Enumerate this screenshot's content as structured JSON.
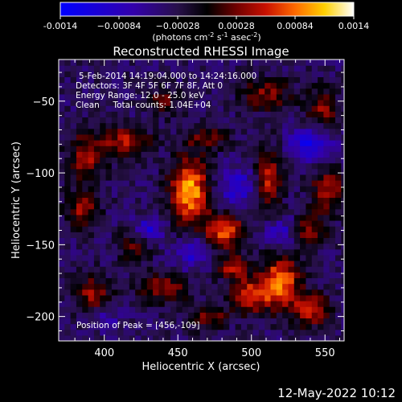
{
  "chart_data": {
    "type": "heatmap",
    "title": "Reconstructed RHESSI Image",
    "xlabel": "Heliocentric X (arcsec)",
    "ylabel": "Heliocentric Y (arcsec)",
    "xlim": [
      369,
      563
    ],
    "ylim": [
      -217,
      -21
    ],
    "x_ticks": [
      400,
      450,
      500,
      550
    ],
    "y_ticks": [
      -50,
      -100,
      -150,
      -200
    ],
    "colorbar": {
      "label_parts": [
        "(photons cm",
        "-2",
        " s",
        "-1",
        " asec",
        "-2",
        ")"
      ],
      "range": [
        -0.0014,
        0.0014
      ],
      "ticks": [
        -0.0014,
        -0.00084,
        -0.00028,
        0.00028,
        0.00084,
        0.0014
      ],
      "tick_labels": [
        "-0.0014",
        "−0.00084",
        "−0.00028",
        "0.00028",
        "0.00084",
        "0.0014"
      ]
    },
    "info_lines": [
      "5-Feb-2014 14:19:04.000 to 14:24:16.000",
      "Detectors: 3F 4F 5F 6F 7F 8F, Att 0",
      "Energy Range: 12.0 - 25.0 keV",
      "Clean     Total counts: 1.04E+04"
    ],
    "peak_label": "Position of Peak = [456,-109]",
    "peak": {
      "x": 456,
      "y": -109,
      "value": 0.0014
    },
    "blobs": [
      {
        "x": 458,
        "y": -112,
        "sx": 9,
        "sy": 16,
        "a": 0.0014
      },
      {
        "x": 482,
        "y": -140,
        "sx": 10,
        "sy": 8,
        "a": 0.0011
      },
      {
        "x": 520,
        "y": -175,
        "sx": 9,
        "sy": 12,
        "a": 0.0012
      },
      {
        "x": 500,
        "y": -185,
        "sx": 10,
        "sy": 9,
        "a": 0.00095
      },
      {
        "x": 540,
        "y": -195,
        "sx": 9,
        "sy": 8,
        "a": 0.00085
      },
      {
        "x": 415,
        "y": -78,
        "sx": 11,
        "sy": 7,
        "a": 0.00085
      },
      {
        "x": 388,
        "y": -88,
        "sx": 9,
        "sy": 12,
        "a": 0.00075
      },
      {
        "x": 385,
        "y": -125,
        "sx": 8,
        "sy": 9,
        "a": 0.0007
      },
      {
        "x": 420,
        "y": -150,
        "sx": 8,
        "sy": 7,
        "a": 0.0006
      },
      {
        "x": 440,
        "y": -180,
        "sx": 12,
        "sy": 7,
        "a": 0.0007
      },
      {
        "x": 512,
        "y": -105,
        "sx": 6,
        "sy": 16,
        "a": 0.00085
      },
      {
        "x": 510,
        "y": -45,
        "sx": 12,
        "sy": 8,
        "a": 0.00065
      },
      {
        "x": 548,
        "y": -55,
        "sx": 8,
        "sy": 10,
        "a": 0.00065
      },
      {
        "x": 552,
        "y": -112,
        "sx": 8,
        "sy": 10,
        "a": 0.0008
      },
      {
        "x": 540,
        "y": -140,
        "sx": 8,
        "sy": 8,
        "a": 0.0007
      },
      {
        "x": 470,
        "y": -75,
        "sx": 10,
        "sy": 6,
        "a": 0.00055
      },
      {
        "x": 392,
        "y": -185,
        "sx": 9,
        "sy": 10,
        "a": 0.0007
      },
      {
        "x": 470,
        "y": -200,
        "sx": 9,
        "sy": 6,
        "a": 0.00065
      },
      {
        "x": 440,
        "y": -50,
        "sx": 8,
        "sy": 7,
        "a": 0.0005
      },
      {
        "x": 487,
        "y": -165,
        "sx": 7,
        "sy": 6,
        "a": 0.0008
      },
      {
        "x": 430,
        "y": -140,
        "sx": 7,
        "sy": 6,
        "a": -0.0007
      },
      {
        "x": 490,
        "y": -110,
        "sx": 9,
        "sy": 10,
        "a": -0.0006
      },
      {
        "x": 540,
        "y": -80,
        "sx": 10,
        "sy": 8,
        "a": -0.0008
      },
      {
        "x": 400,
        "y": -200,
        "sx": 8,
        "sy": 6,
        "a": -0.0004
      },
      {
        "x": 460,
        "y": -155,
        "sx": 8,
        "sy": 8,
        "a": -0.0006
      },
      {
        "x": 520,
        "y": -140,
        "sx": 8,
        "sy": 7,
        "a": -0.0005
      }
    ]
  },
  "footer": {
    "datetime": "12-May-2022 10:12"
  }
}
